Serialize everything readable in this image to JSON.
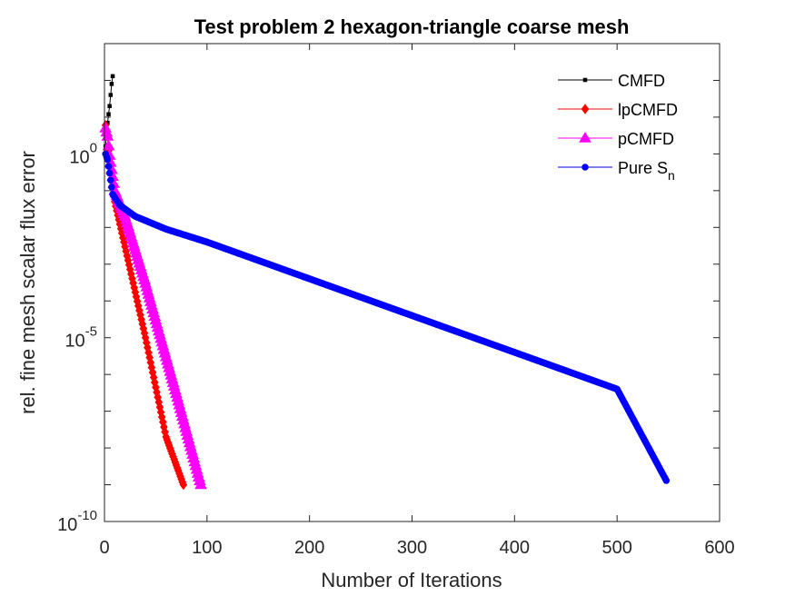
{
  "chart_data": {
    "type": "line",
    "title": "Test problem 2 hexagon-triangle coarse mesh",
    "xlabel": "Number of Iterations",
    "ylabel": "rel. fine mesh scalar flux error",
    "xlim": [
      0,
      600
    ],
    "ylim": [
      1e-10,
      1000.0
    ],
    "yscale": "log",
    "xticks": [
      0,
      100,
      200,
      300,
      400,
      500,
      600
    ],
    "xtick_labels": [
      "0",
      "100",
      "200",
      "300",
      "400",
      "500",
      "600"
    ],
    "yticks": [
      1e-10,
      1e-05,
      1
    ],
    "ytick_labels": [
      {
        "base": "10",
        "exp": "-10"
      },
      {
        "base": "10",
        "exp": "-5"
      },
      {
        "base": "10",
        "exp": "0"
      }
    ],
    "grid": false,
    "legend_position": "top-right",
    "series": [
      {
        "name": "CMFD",
        "color": "#000000",
        "marker": "square",
        "x": [
          1,
          2,
          3,
          4,
          5,
          6,
          7,
          8
        ],
        "y": [
          1.6,
          4.0,
          7.0,
          12.0,
          20.0,
          40.0,
          80.0,
          130.0
        ]
      },
      {
        "name": "lpCMFD",
        "name_sub": "",
        "color": "#ff0000",
        "marker": "diamond",
        "x": [
          1,
          3,
          5,
          10,
          20,
          40,
          60,
          77
        ],
        "y": [
          6.0,
          3.0,
          0.5,
          0.05,
          0.003,
          1e-05,
          2e-08,
          1e-09
        ]
      },
      {
        "name": "pCMFD",
        "name_sub": "",
        "color": "#ff00ff",
        "marker": "triangle",
        "x": [
          1,
          3,
          5,
          10,
          20,
          40,
          70,
          94
        ],
        "y": [
          5.0,
          3.0,
          0.9,
          0.1,
          0.02,
          0.0003,
          3e-07,
          1e-09
        ]
      },
      {
        "name": "Pure S",
        "name_sub": "n",
        "color": "#0000ff",
        "marker": "circle",
        "x": [
          1,
          3,
          5,
          8,
          15,
          30,
          60,
          100,
          200,
          300,
          400,
          500,
          548
        ],
        "y": [
          1.0,
          0.7,
          0.3,
          0.08,
          0.04,
          0.02,
          0.009,
          0.004,
          0.0004,
          4e-05,
          4e-06,
          4e-07,
          1.3e-09
        ]
      }
    ]
  }
}
